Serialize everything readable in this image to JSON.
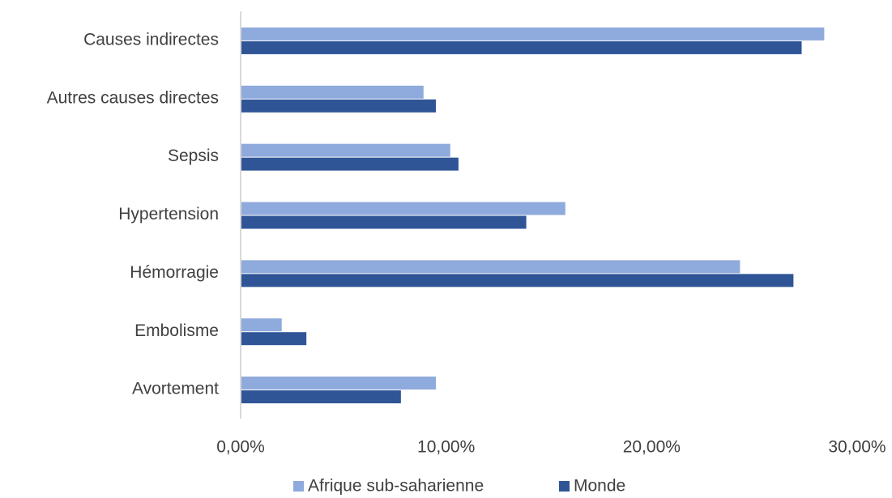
{
  "chart_data": {
    "type": "hbar",
    "categories": [
      "Causes indirectes",
      "Autres causes directes",
      "Sepsis",
      "Hypertension",
      "Hémorragie",
      "Embolisme",
      "Avortement"
    ],
    "series": [
      {
        "name": "Afrique sub-saharienne",
        "color": "#8faadc",
        "values": [
          28.4,
          8.9,
          10.2,
          15.8,
          24.3,
          2.0,
          9.5
        ]
      },
      {
        "name": "Monde",
        "color": "#2f5597",
        "values": [
          27.3,
          9.5,
          10.6,
          13.9,
          26.9,
          3.2,
          7.8
        ]
      }
    ],
    "xlim": [
      0,
      30
    ],
    "xticks": [
      {
        "value": 0,
        "label": "0,00%"
      },
      {
        "value": 10,
        "label": "10,00%"
      },
      {
        "value": 20,
        "label": "20,00%"
      },
      {
        "value": 30,
        "label": "30,00%"
      }
    ],
    "grid": false,
    "legend": "bottom"
  }
}
